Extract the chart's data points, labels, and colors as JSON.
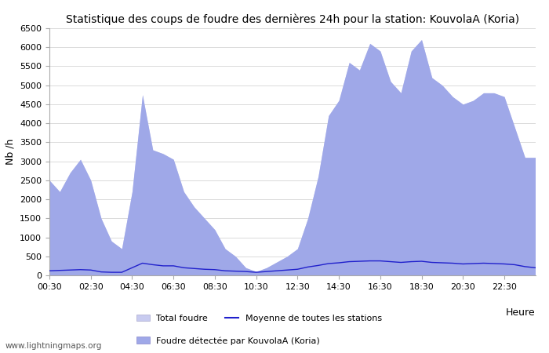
{
  "title": "Statistique des coups de foudre des dernières 24h pour la station: KouvolaA (Koria)",
  "ylabel": "Nb /h",
  "xlabel": "Heure",
  "watermark": "www.lightningmaps.org",
  "ylim": [
    0,
    6500
  ],
  "yticks": [
    0,
    500,
    1000,
    1500,
    2000,
    2500,
    3000,
    3500,
    4000,
    4500,
    5000,
    5500,
    6000,
    6500
  ],
  "xtick_labels": [
    "00:30",
    "02:30",
    "04:30",
    "06:30",
    "08:30",
    "10:30",
    "12:30",
    "14:30",
    "16:30",
    "18:30",
    "20:30",
    "22:30"
  ],
  "fill_color_total": "#c8cbf0",
  "fill_color_station": "#9fa8e8",
  "line_color_moyenne": "#2020cc",
  "bg_color": "#ffffff",
  "grid_color": "#cccccc",
  "legend_total": "Total foudre",
  "legend_moyenne": "Moyenne de toutes les stations",
  "legend_station": "Foudre détectée par KouvolaA (Koria)",
  "times": [
    0.5,
    1.0,
    1.5,
    2.0,
    2.5,
    3.0,
    3.5,
    4.0,
    4.5,
    5.0,
    5.5,
    6.0,
    6.5,
    7.0,
    7.5,
    8.0,
    8.5,
    9.0,
    9.5,
    10.0,
    10.5,
    11.0,
    11.5,
    12.0,
    12.5,
    13.0,
    13.5,
    14.0,
    14.5,
    15.0,
    15.5,
    16.0,
    16.5,
    17.0,
    17.5,
    18.0,
    18.5,
    19.0,
    19.5,
    20.0,
    20.5,
    21.0,
    21.5,
    22.0,
    22.5,
    23.0,
    23.5,
    24.0
  ],
  "total_foudre": [
    2500,
    2200,
    2700,
    3050,
    2500,
    1500,
    900,
    700,
    2200,
    4750,
    3300,
    3200,
    3050,
    2200,
    1800,
    1500,
    1200,
    700,
    500,
    200,
    100,
    200,
    350,
    500,
    700,
    1500,
    2600,
    4200,
    4600,
    5600,
    5400,
    6100,
    5900,
    5100,
    4800,
    5900,
    6200,
    5200,
    5000,
    4700,
    4500,
    4600,
    4800,
    4800,
    4700,
    3900,
    3100,
    3100
  ],
  "station_foudre": [
    2500,
    2200,
    2700,
    3050,
    2500,
    1500,
    900,
    700,
    2200,
    4750,
    3300,
    3200,
    3050,
    2200,
    1800,
    1500,
    1200,
    700,
    500,
    200,
    100,
    200,
    350,
    500,
    700,
    1500,
    2600,
    4200,
    4600,
    5600,
    5400,
    6100,
    5900,
    5100,
    4800,
    5900,
    6200,
    5200,
    5000,
    4700,
    4500,
    4600,
    4800,
    4800,
    4700,
    3900,
    3100,
    3100
  ],
  "moyenne": [
    120,
    130,
    140,
    150,
    140,
    90,
    80,
    80,
    200,
    320,
    280,
    250,
    250,
    200,
    180,
    160,
    150,
    120,
    110,
    100,
    80,
    100,
    120,
    140,
    160,
    220,
    260,
    310,
    330,
    360,
    370,
    380,
    380,
    360,
    340,
    360,
    370,
    340,
    330,
    320,
    300,
    310,
    320,
    310,
    300,
    280,
    230,
    200
  ]
}
